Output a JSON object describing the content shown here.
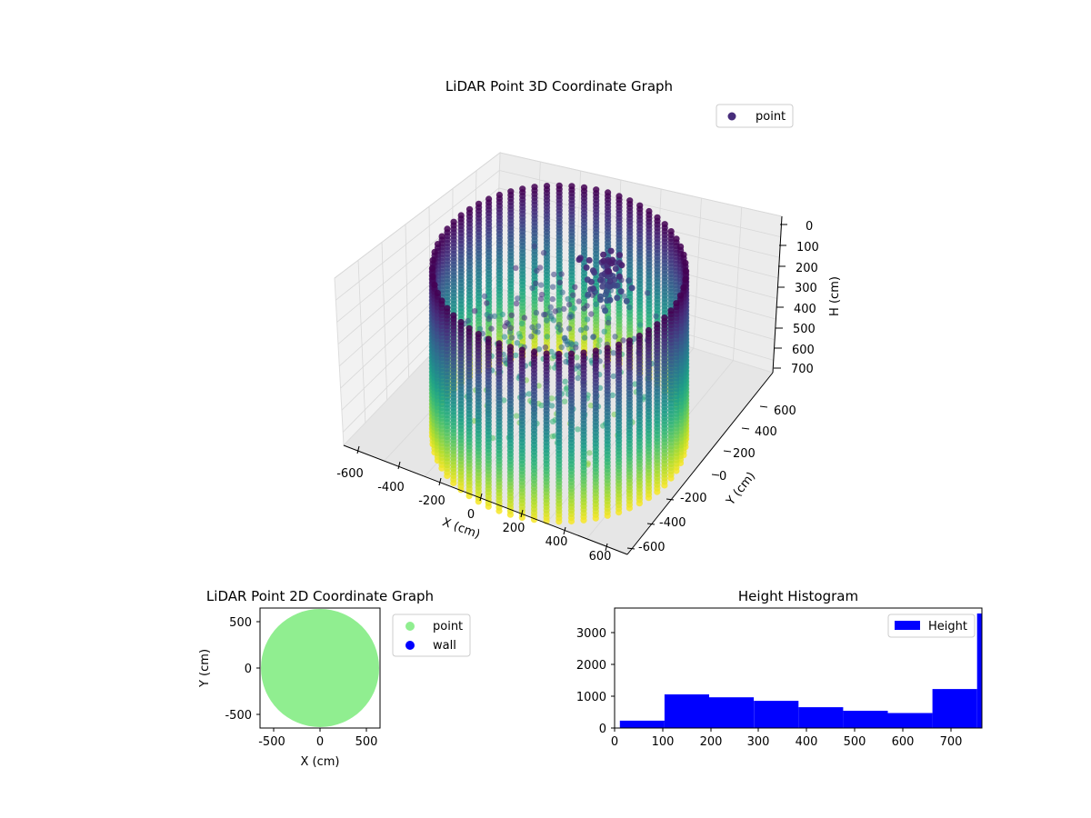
{
  "chart_data": [
    {
      "type": "scatter3d",
      "title": "LiDAR Point 3D Coordinate Graph",
      "xlabel": "X (cm)",
      "ylabel": "Y (cm)",
      "zlabel": "H (cm)",
      "xlim": [
        -650,
        650
      ],
      "ylim": [
        -650,
        650
      ],
      "zlim": [
        760,
        0
      ],
      "xticks": [
        "-600",
        "-400",
        "-200",
        "0",
        "200",
        "400",
        "600"
      ],
      "yticks": [
        "-600",
        "-400",
        "-200",
        "0",
        "200",
        "400",
        "600"
      ],
      "zticks": [
        "0",
        "100",
        "200",
        "300",
        "400",
        "500",
        "600",
        "700"
      ],
      "legend": {
        "placement": "upper-right",
        "entries": [
          {
            "label": "point",
            "color": "#472d7b"
          }
        ]
      },
      "colormap": "viridis",
      "grid": true,
      "series": [
        {
          "name": "point",
          "shape": "cylindrical wall of vertical scan lines with interior return points",
          "wall_radius": 600,
          "height_range": [
            0,
            760
          ],
          "color_by": "height"
        }
      ]
    },
    {
      "type": "scatter",
      "title": "LiDAR Point 2D Coordinate Graph",
      "xlabel": "X (cm)",
      "ylabel": "Y (cm)",
      "xlim": [
        -650,
        650
      ],
      "ylim": [
        -650,
        650
      ],
      "xticks": [
        "-500",
        "0",
        "500"
      ],
      "yticks": [
        "-500",
        "0",
        "500"
      ],
      "legend": {
        "placement": "outside-right",
        "entries": [
          {
            "label": "point",
            "color": "#90ee90"
          },
          {
            "label": "wall",
            "color": "#0000ff"
          }
        ]
      },
      "series": [
        {
          "name": "point",
          "shape": "filled disc of points",
          "radius": 640,
          "color": "#90ee90"
        }
      ]
    },
    {
      "type": "histogram",
      "title": "Height Histogram",
      "xlim": [
        0,
        765
      ],
      "ylim": [
        0,
        3750
      ],
      "xticks": [
        "0",
        "100",
        "200",
        "300",
        "400",
        "500",
        "600",
        "700"
      ],
      "yticks": [
        "0",
        "1000",
        "2000",
        "3000"
      ],
      "legend": {
        "placement": "upper-right",
        "entries": [
          {
            "label": "Height",
            "color": "#0000ff"
          }
        ]
      },
      "bins": [
        {
          "x0": 11,
          "x1": 104,
          "count": 230
        },
        {
          "x0": 104,
          "x1": 197,
          "count": 1050
        },
        {
          "x0": 197,
          "x1": 290,
          "count": 960
        },
        {
          "x0": 290,
          "x1": 383,
          "count": 850
        },
        {
          "x0": 383,
          "x1": 476,
          "count": 650
        },
        {
          "x0": 476,
          "x1": 569,
          "count": 540
        },
        {
          "x0": 569,
          "x1": 662,
          "count": 470
        },
        {
          "x0": 662,
          "x1": 755,
          "count": 1220
        },
        {
          "x0": 755,
          "x1": 765,
          "count": 3580
        }
      ]
    }
  ]
}
